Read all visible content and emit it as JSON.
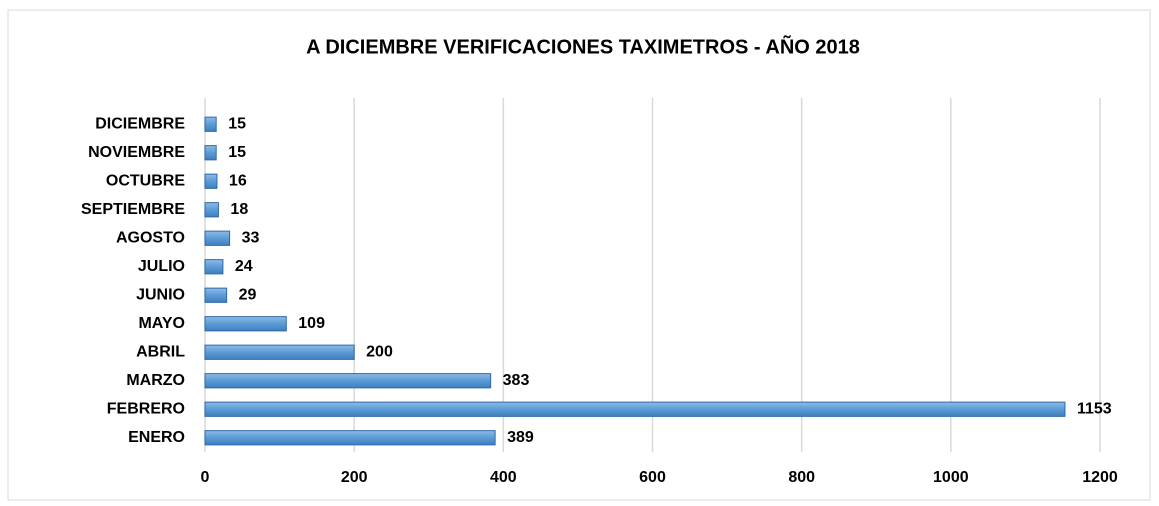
{
  "chart_data": {
    "type": "bar",
    "orientation": "horizontal",
    "title": "A DICIEMBRE VERIFICACIONES TAXIMETROS - AÑO 2018",
    "categories": [
      "ENERO",
      "FEBRERO",
      "MARZO",
      "ABRIL",
      "MAYO",
      "JUNIO",
      "JULIO",
      "AGOSTO",
      "SEPTIEMBRE",
      "OCTUBRE",
      "NOVIEMBRE",
      "DICIEMBRE"
    ],
    "values": [
      389,
      1153,
      383,
      200,
      109,
      29,
      24,
      33,
      18,
      16,
      15,
      15
    ],
    "color": "#5b9bd5",
    "xlim": [
      0,
      1200
    ],
    "xticks": [
      0,
      200,
      400,
      600,
      800,
      1000,
      1200
    ],
    "grid": true
  }
}
